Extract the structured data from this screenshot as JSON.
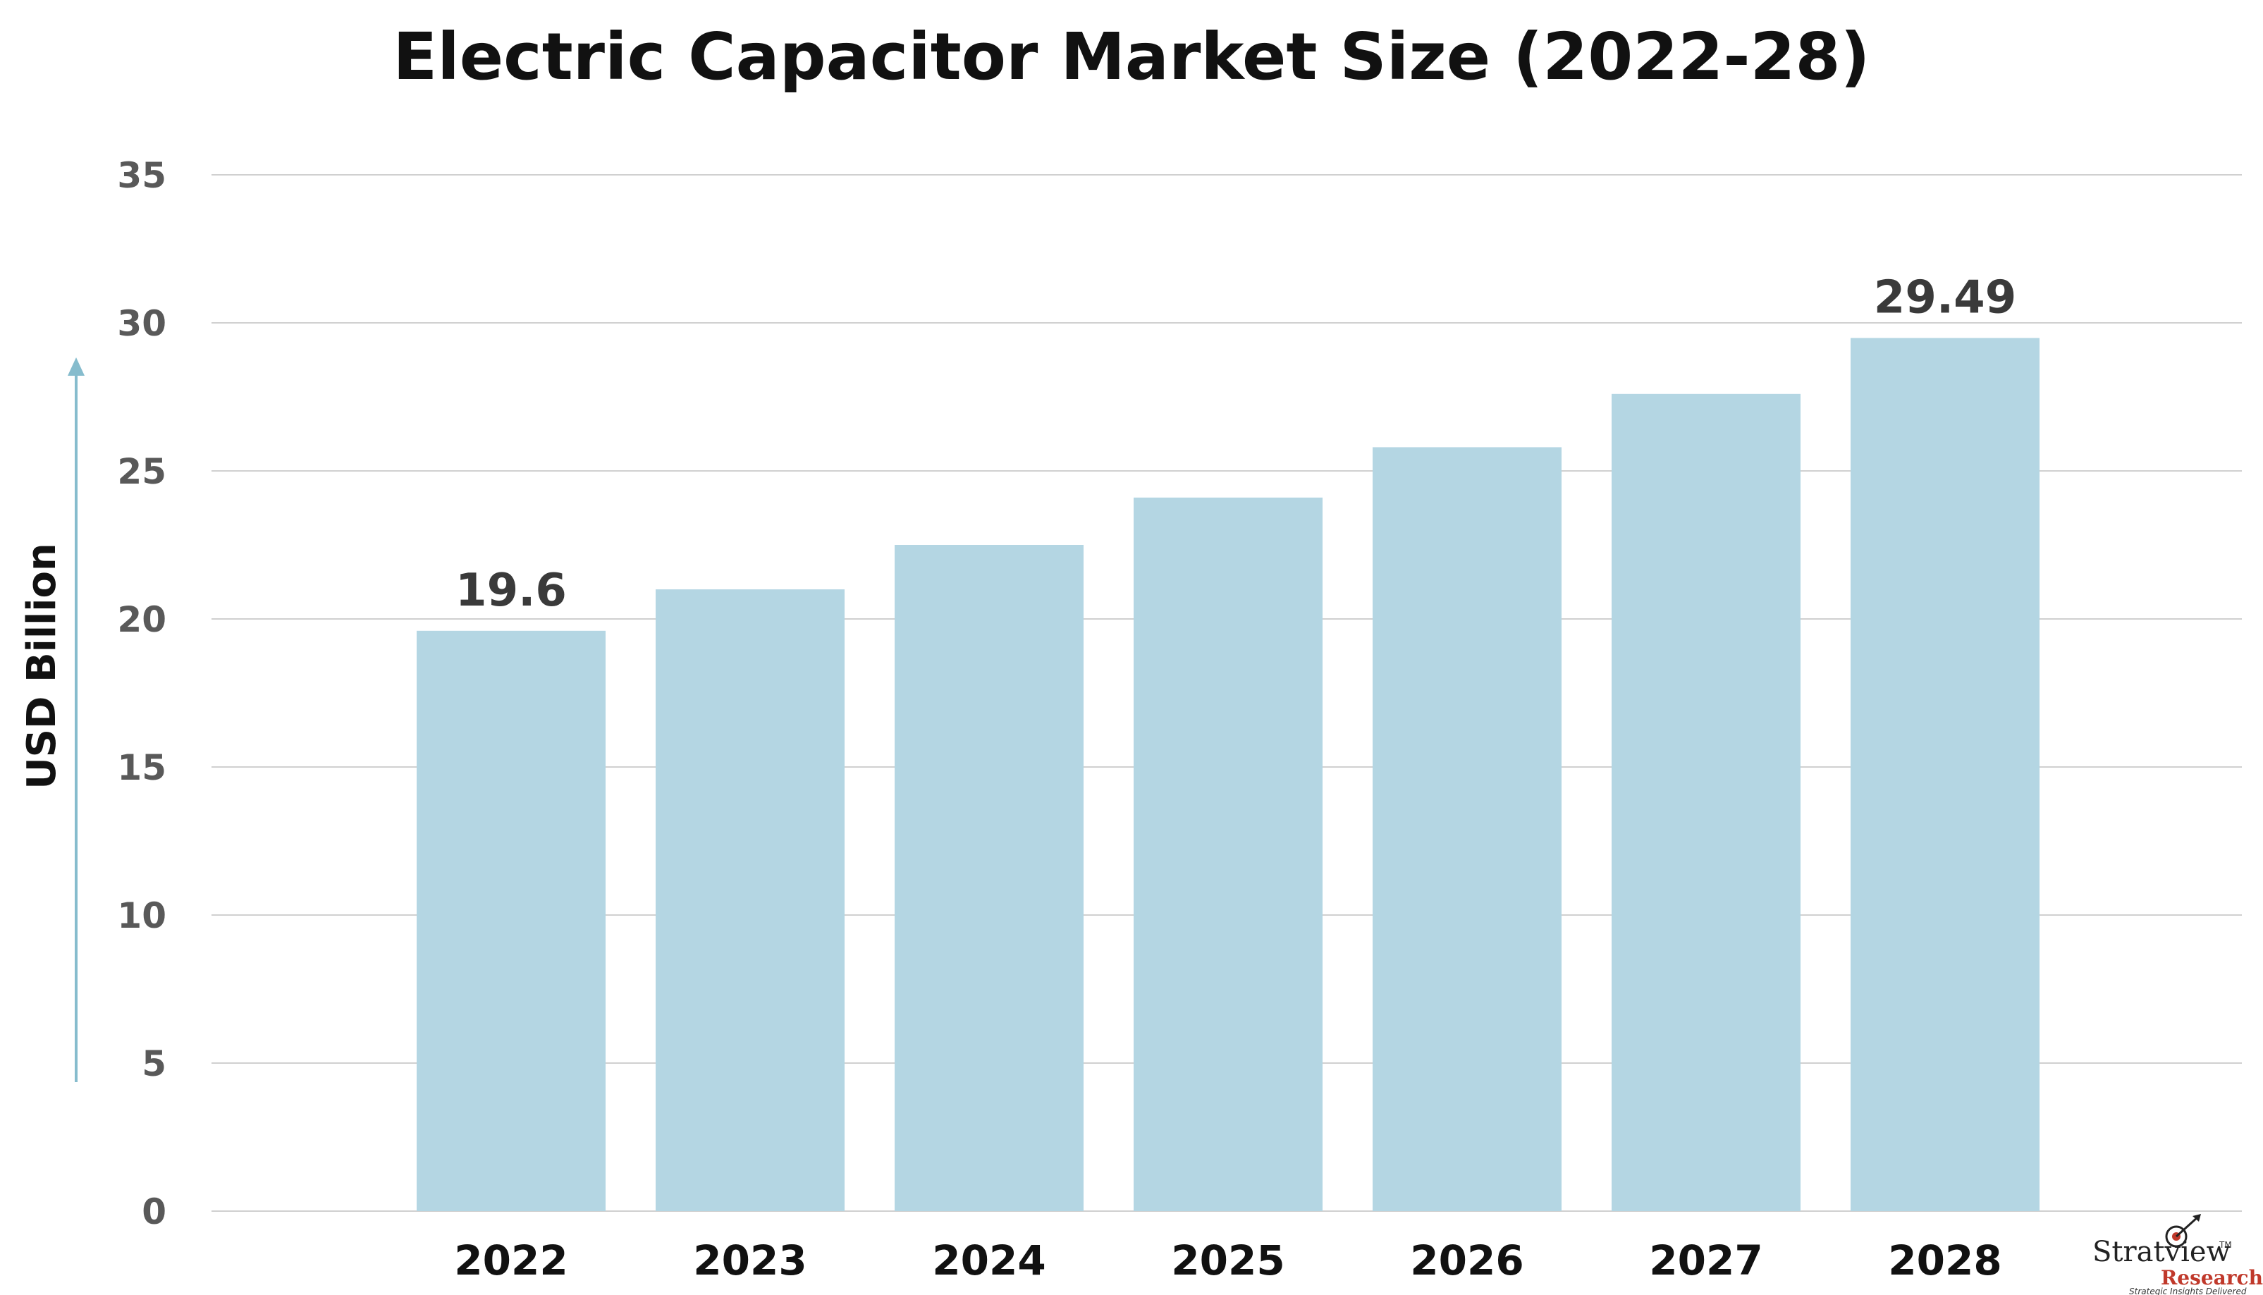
{
  "chart_data": {
    "type": "bar",
    "title": "Electric Capacitor Market Size (2022-28)",
    "ylabel": "USD Billion",
    "xlabel": "",
    "categories": [
      "2022",
      "2023",
      "2024",
      "2025",
      "2026",
      "2027",
      "2028"
    ],
    "values": [
      19.6,
      21.0,
      22.5,
      24.1,
      25.8,
      27.6,
      29.49
    ],
    "data_labels": [
      {
        "category": "2022",
        "text": "19.6"
      },
      {
        "category": "2028",
        "text": "29.49"
      }
    ],
    "ylim": [
      0,
      35
    ],
    "yticks": [
      "0",
      "5",
      "10",
      "15",
      "20",
      "25",
      "30",
      "35"
    ],
    "grid": true,
    "bar_color": "#b4d6e3",
    "grid_color": "#d0d0d0",
    "axis_arrow_color": "#86bccd"
  },
  "logo": {
    "name": "Stratview",
    "trademark": "TM",
    "subname": "Research",
    "tagline": "Strategic Insights Delivered",
    "icon": "target-arrow-icon"
  }
}
